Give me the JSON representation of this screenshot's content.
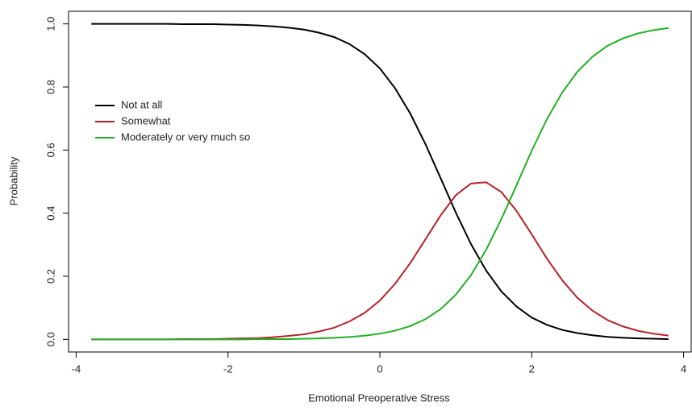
{
  "chart_data": {
    "type": "line",
    "x_label": "Emotional Preoperative Stress",
    "y_label": "Probability",
    "x": [
      -3.8,
      -3.6,
      -3.4,
      -3.2,
      -3.0,
      -2.8,
      -2.6,
      -2.4,
      -2.2,
      -2.0,
      -1.8,
      -1.6,
      -1.4,
      -1.2,
      -1.0,
      -0.8,
      -0.6,
      -0.4,
      -0.2,
      0,
      0.2,
      0.4,
      0.6,
      0.8,
      1.0,
      1.2,
      1.4,
      1.6,
      1.8,
      2.0,
      2.2,
      2.4,
      2.6,
      2.8,
      3.0,
      3.2,
      3.4,
      3.6,
      3.8
    ],
    "series": [
      {
        "name": "Not at all",
        "color": "#000000",
        "values": [
          1.0,
          1.0,
          1.0,
          1.0,
          1.0,
          1.0,
          0.999,
          0.999,
          0.999,
          0.998,
          0.997,
          0.995,
          0.992,
          0.988,
          0.982,
          0.972,
          0.958,
          0.936,
          0.904,
          0.859,
          0.796,
          0.716,
          0.619,
          0.511,
          0.402,
          0.302,
          0.218,
          0.152,
          0.104,
          0.069,
          0.046,
          0.03,
          0.02,
          0.013,
          0.008,
          0.005,
          0.003,
          0.002,
          0.001
        ]
      },
      {
        "name": "Somewhat",
        "color": "#b5232a",
        "values": [
          0,
          0,
          0,
          0,
          0,
          0,
          0.001,
          0.001,
          0.001,
          0.002,
          0.003,
          0.004,
          0.007,
          0.011,
          0.016,
          0.025,
          0.037,
          0.057,
          0.084,
          0.123,
          0.176,
          0.242,
          0.317,
          0.393,
          0.457,
          0.494,
          0.498,
          0.467,
          0.407,
          0.333,
          0.256,
          0.188,
          0.132,
          0.091,
          0.061,
          0.041,
          0.027,
          0.018,
          0.012
        ]
      },
      {
        "name": "Moderately or very much so",
        "color": "#22b022",
        "values": [
          0,
          0,
          0,
          0,
          0,
          0,
          0,
          0,
          0,
          0,
          0,
          0.001,
          0.001,
          0.001,
          0.002,
          0.003,
          0.005,
          0.0075,
          0.0116,
          0.0179,
          0.0275,
          0.0421,
          0.0639,
          0.0959,
          0.1413,
          0.2036,
          0.2842,
          0.3813,
          0.489,
          0.598,
          0.698,
          0.782,
          0.848,
          0.896,
          0.931,
          0.954,
          0.97,
          0.98,
          0.987
        ]
      }
    ],
    "xlim": [
      -4.1,
      4.1
    ],
    "ylim": [
      -0.04,
      1.04
    ],
    "xticks": [
      -4,
      -2,
      0,
      2,
      4
    ],
    "yticks": [
      {
        "value": 0,
        "label": "0.0"
      },
      0.2,
      0.4,
      0.6,
      0.8,
      {
        "value": 1,
        "label": "1.0"
      }
    ],
    "legend": "topleft"
  }
}
